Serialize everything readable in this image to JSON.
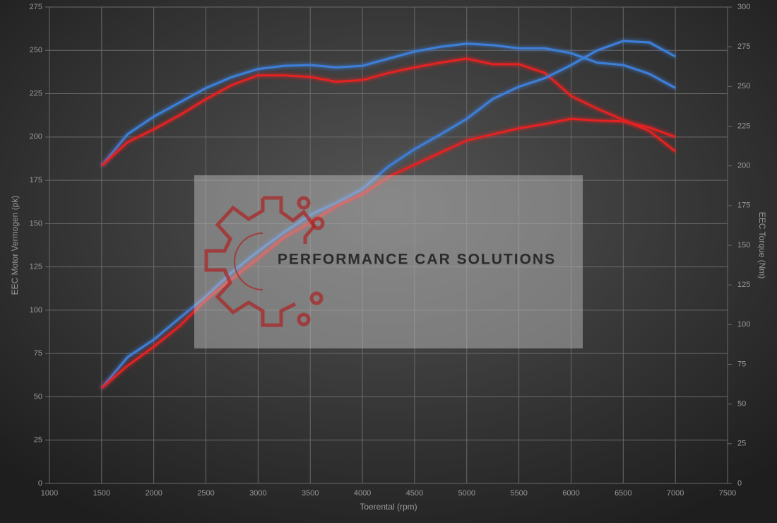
{
  "chart_data": {
    "type": "line",
    "watermark": "PERFORMANCE CAR SOLUTIONS",
    "xlabel": "Toerental (rpm)",
    "ylabel": "EEC Motor Vermogen (pk)",
    "y2label": "EEC Torque (Nm)",
    "x": [
      1500,
      1750,
      2000,
      2250,
      2500,
      2750,
      3000,
      3250,
      3500,
      3750,
      4000,
      4250,
      4500,
      4750,
      5000,
      5250,
      5500,
      5750,
      6000,
      6250,
      6500,
      6750,
      7000
    ],
    "series": [
      {
        "color": "#3d7fd9",
        "axis": "y2",
        "values": [
          200,
          220,
          231,
          240,
          249,
          256,
          261,
          263,
          263.5,
          262,
          263,
          267.5,
          272,
          275,
          277,
          276,
          274,
          274,
          271,
          265,
          263.5,
          258,
          249
        ]
      },
      {
        "color": "#e52222",
        "axis": "y2",
        "values": [
          200,
          215,
          223,
          232,
          242,
          251,
          257,
          257,
          256,
          253,
          254,
          258.5,
          262,
          265,
          267.5,
          264,
          264,
          258.5,
          244,
          236,
          229,
          222,
          209
        ]
      },
      {
        "color": "#3d7fd9",
        "values": [
          55,
          73,
          83,
          95.5,
          108,
          122,
          134,
          145,
          155,
          162,
          170,
          183,
          193,
          201.5,
          210.5,
          222,
          229,
          234,
          241.5,
          250,
          255.4,
          254.6,
          246.5
        ]
      },
      {
        "color": "#e52222",
        "values": [
          55,
          68,
          79,
          91,
          106,
          118,
          130,
          142,
          150.5,
          160,
          167,
          177,
          184,
          191,
          198,
          201.5,
          205,
          207.5,
          210.5,
          209.5,
          209,
          205.5,
          200
        ]
      }
    ],
    "xlim": [
      1000,
      7500
    ],
    "xticks": [
      1000,
      1500,
      2000,
      2500,
      3000,
      3500,
      4000,
      4500,
      5000,
      5500,
      6000,
      6500,
      7000,
      7500
    ],
    "ylim": [
      0,
      275
    ],
    "yticks": [
      0,
      25,
      50,
      75,
      100,
      125,
      150,
      175,
      200,
      225,
      250,
      275
    ],
    "y2lim": [
      0,
      300
    ],
    "y2ticks": [
      0,
      25,
      50,
      75,
      100,
      125,
      150,
      175,
      200,
      225,
      250,
      275,
      300
    ],
    "grid": true
  }
}
